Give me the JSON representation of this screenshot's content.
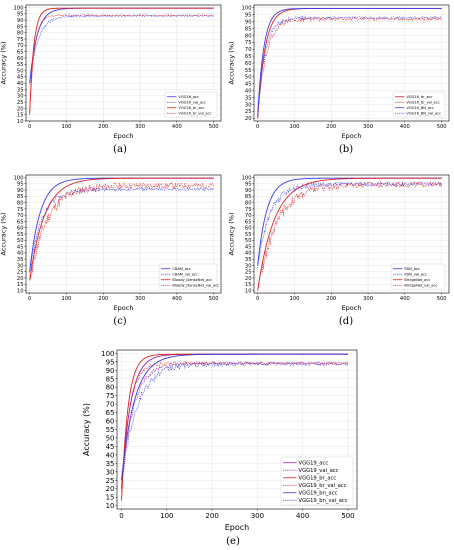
{
  "chart_data": [
    {
      "type": "line",
      "caption": "(a)",
      "xlabel": "Epoch",
      "ylabel": "Accuracy (%)",
      "xlim": [
        -10,
        520
      ],
      "ylim": [
        10,
        102
      ],
      "xticks": [
        0,
        100,
        200,
        300,
        400,
        500
      ],
      "yticks": [
        10,
        15,
        20,
        25,
        30,
        35,
        40,
        45,
        50,
        55,
        60,
        65,
        70,
        75,
        80,
        85,
        90,
        95,
        100
      ],
      "legend_position": "bottom-right",
      "series": [
        {
          "name": "VGG16_acc",
          "color": "#3b3bf0",
          "dash": "solid",
          "start": 40,
          "final": 99.5,
          "rate": 0.05,
          "noise": 0
        },
        {
          "name": "VGG16_val_acc",
          "color": "#3b3bf0",
          "dash": "dotted",
          "start": 40,
          "final": 93.5,
          "rate": 0.045,
          "noise": 1.5
        },
        {
          "name": "VGG16_br_acc",
          "color": "#e02020",
          "dash": "solid",
          "start": 16,
          "final": 99.5,
          "rate": 0.09,
          "noise": 0
        },
        {
          "name": "VGG16_br_val_acc",
          "color": "#e02020",
          "dash": "dotted",
          "start": 16,
          "final": 94.0,
          "rate": 0.08,
          "noise": 1.0
        }
      ]
    },
    {
      "type": "line",
      "caption": "(b)",
      "xlabel": "Epoch",
      "ylabel": "Accuracy (%)",
      "xlim": [
        -10,
        520
      ],
      "ylim": [
        18,
        102
      ],
      "xticks": [
        0,
        100,
        200,
        300,
        400,
        500
      ],
      "yticks": [
        20,
        25,
        30,
        35,
        40,
        45,
        50,
        55,
        60,
        65,
        70,
        75,
        80,
        85,
        90,
        95,
        100
      ],
      "legend_position": "bottom-right",
      "series": [
        {
          "name": "VGG16_br_acc",
          "color": "#e02020",
          "dash": "solid",
          "start": 20,
          "final": 99.5,
          "rate": 0.05,
          "noise": 0
        },
        {
          "name": "VGG16_br_val_acc",
          "color": "#e02020",
          "dash": "dotted",
          "start": 20,
          "final": 92.0,
          "rate": 0.045,
          "noise": 2.5
        },
        {
          "name": "VGG16_BN_acc",
          "color": "#3b3bf0",
          "dash": "solid",
          "start": 22,
          "final": 99.5,
          "rate": 0.06,
          "noise": 0
        },
        {
          "name": "VGG16_BN_val_acc",
          "color": "#3b3bf0",
          "dash": "dotted",
          "start": 22,
          "final": 93.0,
          "rate": 0.05,
          "noise": 2.0
        }
      ]
    },
    {
      "type": "line",
      "caption": "(c)",
      "xlabel": "Epoch",
      "ylabel": "Accuracy (%)",
      "xlim": [
        -10,
        520
      ],
      "ylim": [
        8,
        102
      ],
      "xticks": [
        0,
        100,
        200,
        300,
        400,
        500
      ],
      "yticks": [
        10,
        15,
        20,
        25,
        30,
        35,
        40,
        45,
        50,
        55,
        60,
        65,
        70,
        75,
        80,
        85,
        90,
        95,
        100
      ],
      "legend_position": "bottom-right",
      "series": [
        {
          "name": "CBAM_acc",
          "color": "#3b3bf0",
          "dash": "solid",
          "start": 25,
          "final": 99.5,
          "rate": 0.035,
          "noise": 0
        },
        {
          "name": "CBAM_val_acc",
          "color": "#3b3bf0",
          "dash": "dotted",
          "start": 25,
          "final": 91.0,
          "rate": 0.03,
          "noise": 3.0
        },
        {
          "name": "Bloody_DenseNet_acc",
          "color": "#e02020",
          "dash": "solid",
          "start": 18,
          "final": 99.5,
          "rate": 0.025,
          "noise": 0
        },
        {
          "name": "Bloody_DenseNet_val_acc",
          "color": "#e02020",
          "dash": "dotted",
          "start": 18,
          "final": 94.0,
          "rate": 0.022,
          "noise": 6.0
        }
      ]
    },
    {
      "type": "line",
      "caption": "(d)",
      "xlabel": "Epoch",
      "ylabel": "Accuracy (%)",
      "xlim": [
        -10,
        520
      ],
      "ylim": [
        8,
        102
      ],
      "xticks": [
        0,
        100,
        200,
        300,
        400,
        500
      ],
      "yticks": [
        10,
        15,
        20,
        25,
        30,
        35,
        40,
        45,
        50,
        55,
        60,
        65,
        70,
        75,
        80,
        85,
        90,
        95,
        100
      ],
      "legend_position": "bottom-right",
      "series": [
        {
          "name": "RSN_acc",
          "color": "#3b3bf0",
          "dash": "solid",
          "start": 30,
          "final": 99.5,
          "rate": 0.04,
          "noise": 0
        },
        {
          "name": "RSN_val_acc",
          "color": "#3b3bf0",
          "dash": "dotted",
          "start": 30,
          "final": 95.0,
          "rate": 0.03,
          "noise": 4.0
        },
        {
          "name": "BridgeNet_acc",
          "color": "#e02020",
          "dash": "solid",
          "start": 10,
          "final": 99.5,
          "rate": 0.022,
          "noise": 0
        },
        {
          "name": "BridgeNet_val_acc",
          "color": "#e02020",
          "dash": "dotted",
          "start": 10,
          "final": 95.0,
          "rate": 0.02,
          "noise": 6.0
        }
      ]
    },
    {
      "type": "line",
      "caption": "(e)",
      "xlabel": "Epoch",
      "ylabel": "Accuracy (%)",
      "xlim": [
        -10,
        520
      ],
      "ylim": [
        8,
        102
      ],
      "xticks": [
        0,
        100,
        200,
        300,
        400,
        500
      ],
      "yticks": [
        10,
        15,
        20,
        25,
        30,
        35,
        40,
        45,
        50,
        55,
        60,
        65,
        70,
        75,
        80,
        85,
        90,
        95,
        100
      ],
      "legend_position": "bottom-right",
      "series": [
        {
          "name": "VGG19_acc",
          "color": "#a020a0",
          "dash": "solid",
          "start": 20,
          "final": 99.5,
          "rate": 0.05,
          "noise": 0
        },
        {
          "name": "VGG19_val_acc",
          "color": "#a020a0",
          "dash": "dotted",
          "start": 20,
          "final": 94.0,
          "rate": 0.04,
          "noise": 2.0
        },
        {
          "name": "VGG19_br_acc",
          "color": "#e02020",
          "dash": "solid",
          "start": 13,
          "final": 99.5,
          "rate": 0.07,
          "noise": 0
        },
        {
          "name": "VGG19_br_val_acc",
          "color": "#e02020",
          "dash": "dotted",
          "start": 13,
          "final": 94.5,
          "rate": 0.06,
          "noise": 1.5
        },
        {
          "name": "VGG19_bn_acc",
          "color": "#3b3bf0",
          "dash": "solid",
          "start": 25,
          "final": 99.5,
          "rate": 0.035,
          "noise": 0
        },
        {
          "name": "VGG19_bn_val_acc",
          "color": "#3b3bf0",
          "dash": "dotted",
          "start": 25,
          "final": 94.0,
          "rate": 0.03,
          "noise": 3.0
        }
      ]
    }
  ]
}
